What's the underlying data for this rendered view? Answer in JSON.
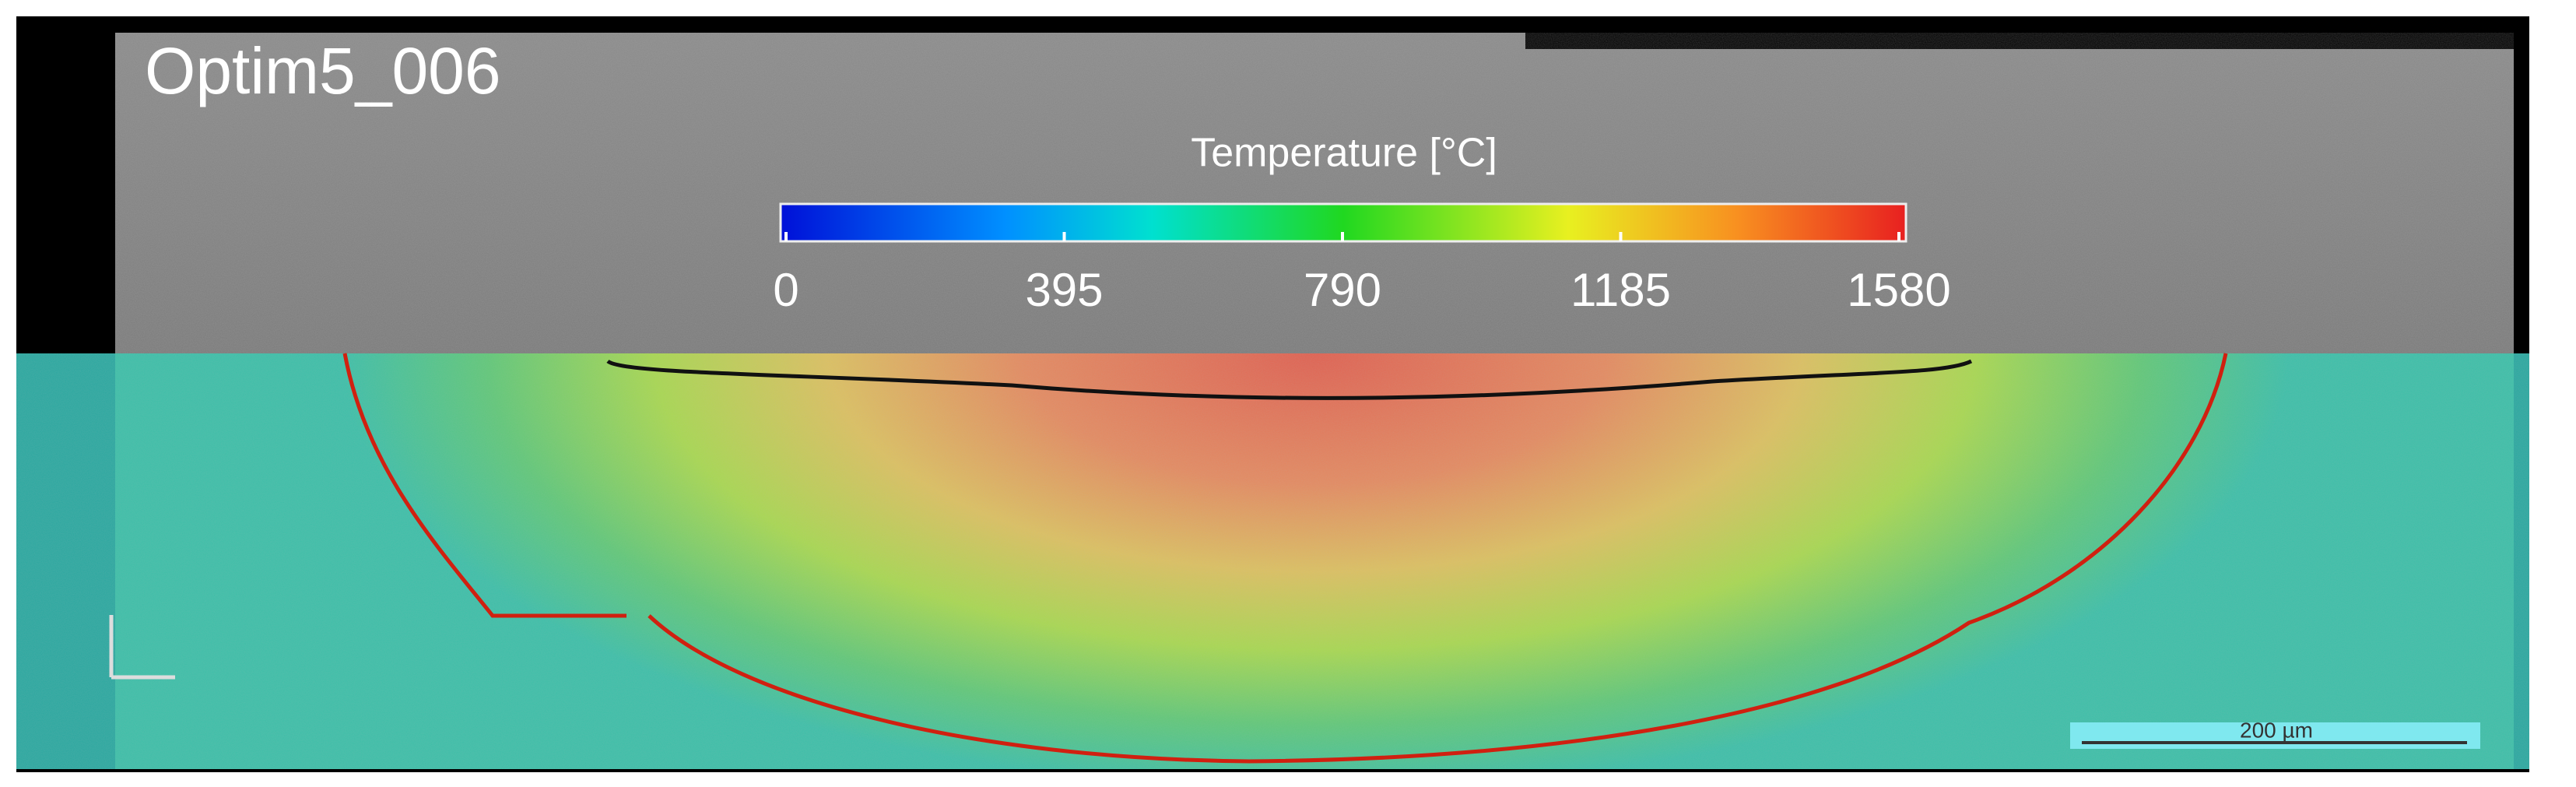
{
  "label": "Optim5_006",
  "colorbar": {
    "title": "Temperature [°C]",
    "ticks": [
      0,
      395,
      790,
      1185,
      1580
    ]
  },
  "scale_bar": {
    "label": "200 µm"
  }
}
